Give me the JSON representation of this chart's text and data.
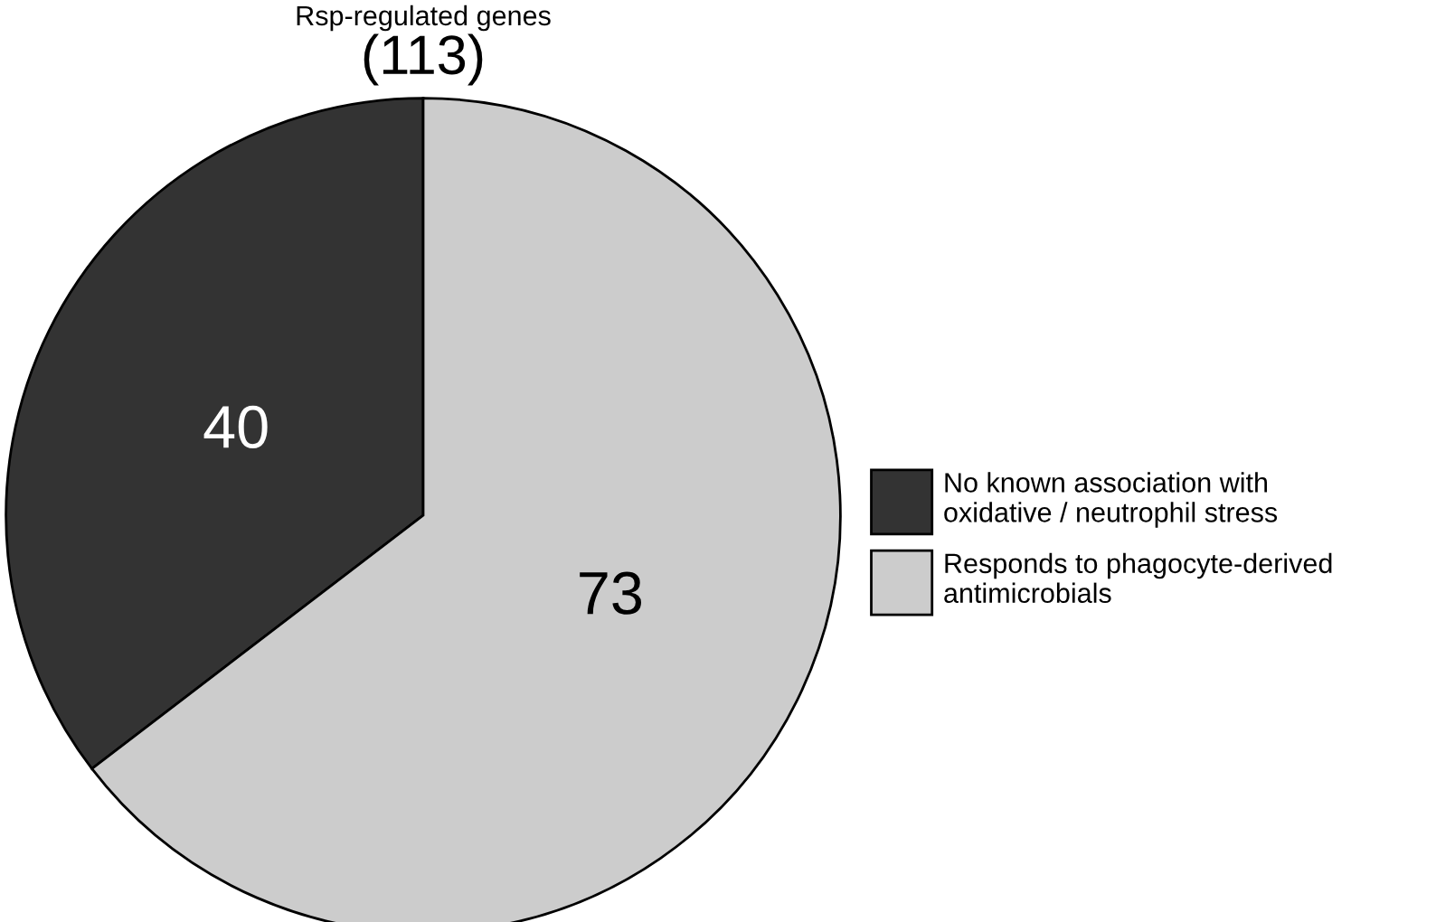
{
  "chart_data": {
    "type": "pie",
    "title": "Rsp-regulated genes",
    "subtitle": "(113)",
    "categories": [
      "No known association with\noxidative / neutrophil stress",
      "Responds to phagocyte-derived\nantimicrobials"
    ],
    "values": [
      40,
      73
    ],
    "colors": [
      "#333333",
      "#cccccc"
    ],
    "data_labels": true,
    "legend": "right"
  }
}
